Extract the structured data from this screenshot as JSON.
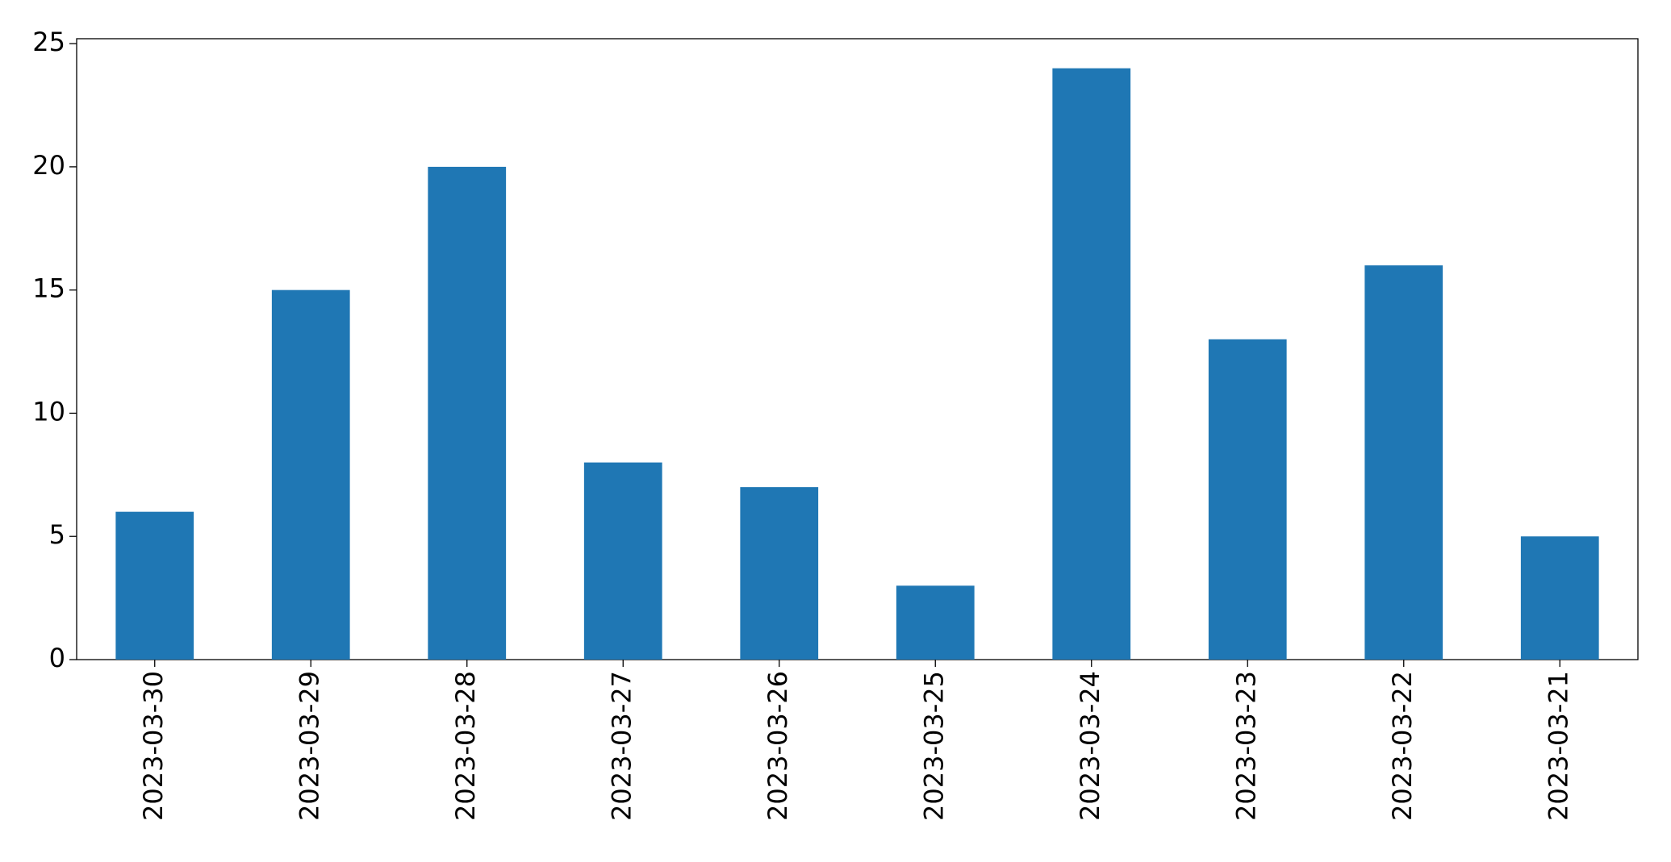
{
  "chart_data": {
    "type": "bar",
    "categories": [
      "2023-03-30",
      "2023-03-29",
      "2023-03-28",
      "2023-03-27",
      "2023-03-26",
      "2023-03-25",
      "2023-03-24",
      "2023-03-23",
      "2023-03-22",
      "2023-03-21"
    ],
    "values": [
      6,
      15,
      20,
      8,
      7,
      3,
      24,
      13,
      16,
      5
    ],
    "color": "#1f77b4",
    "ylim": [
      0,
      25.2
    ],
    "yticks": [
      0,
      5,
      10,
      15,
      20,
      25
    ],
    "grid": false
  }
}
